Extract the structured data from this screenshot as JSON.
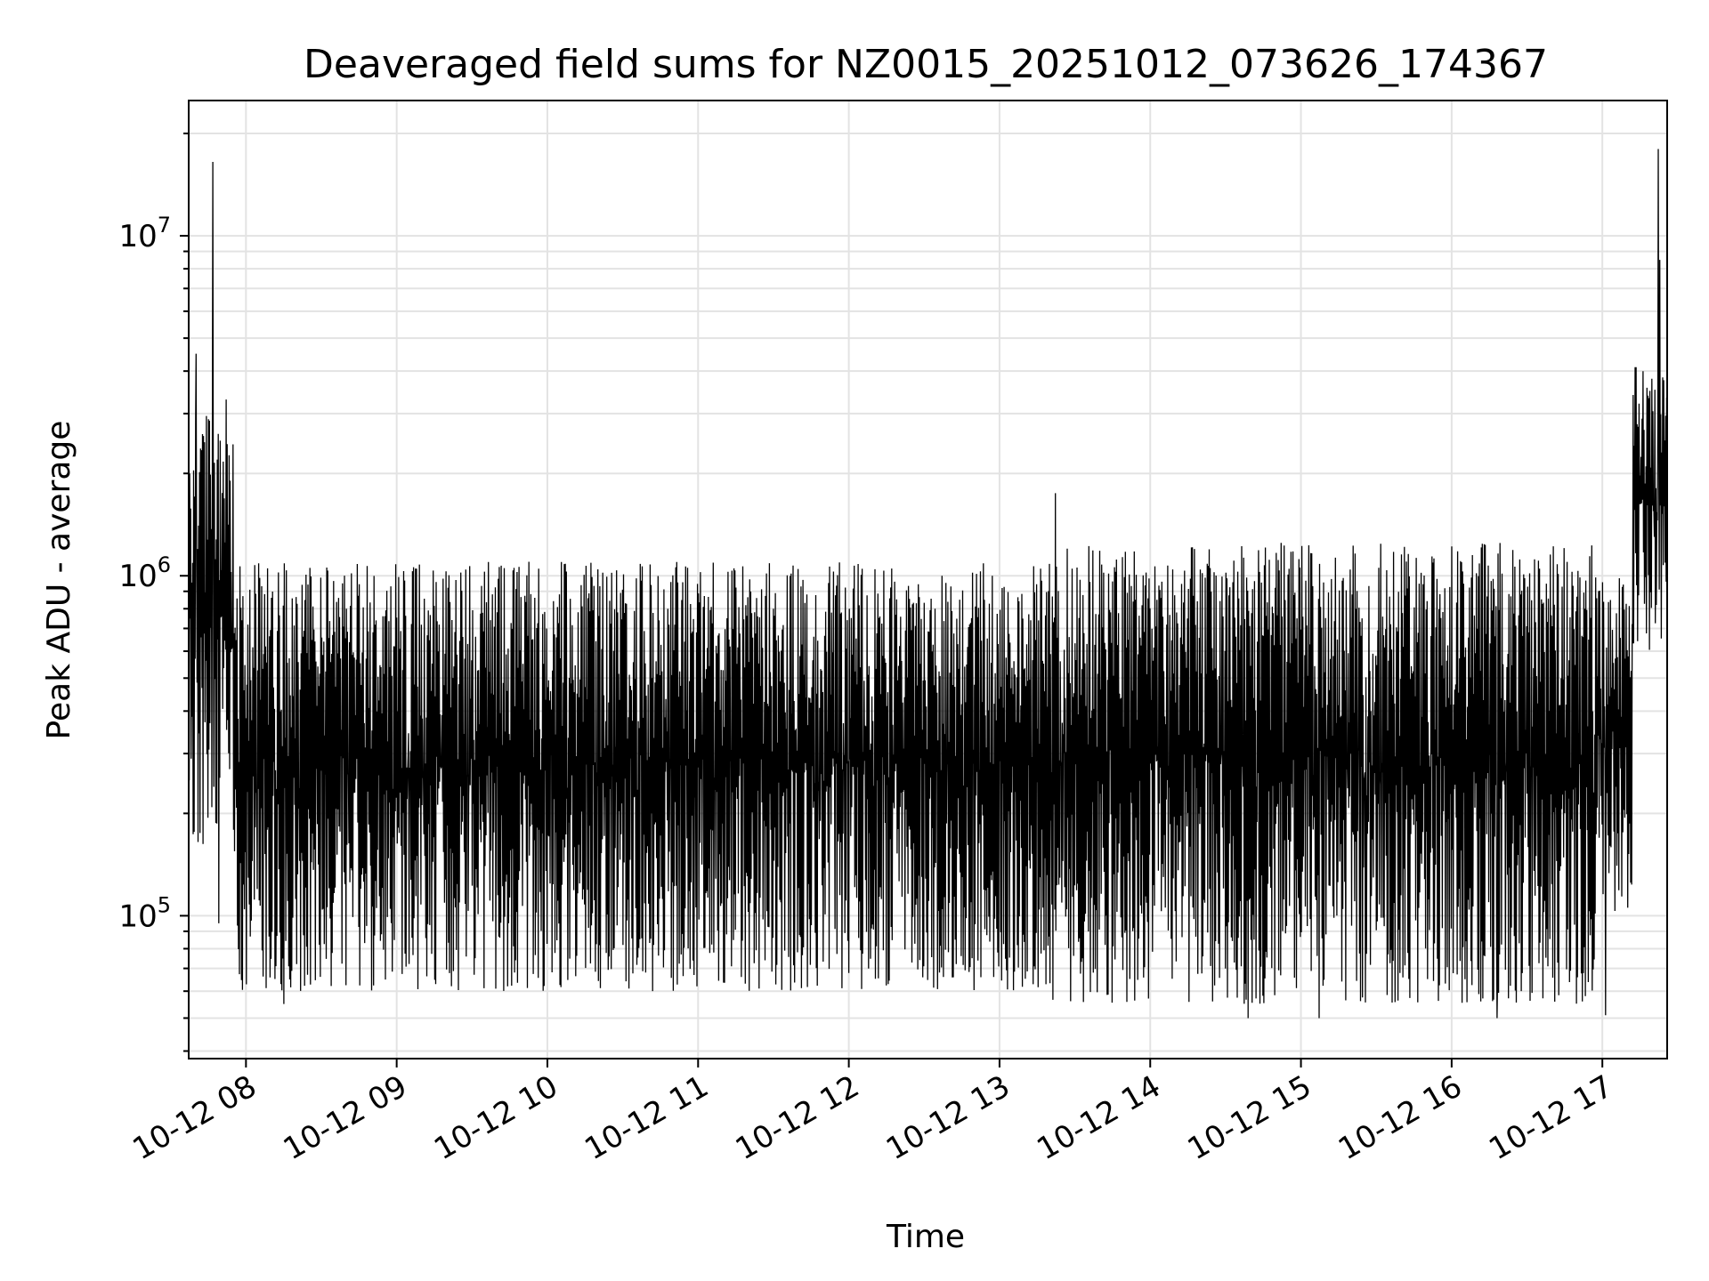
{
  "chart_data": {
    "type": "line",
    "title": "Deaveraged field sums for NZ0015_20251012_073626_174367",
    "xlabel": "Time",
    "ylabel": "Peak ADU - average",
    "yscale": "log",
    "ylim": [
      38000,
      25000000
    ],
    "x_range_hours": [
      7.62,
      17.43
    ],
    "grid": true,
    "x_tick_hours": [
      8,
      9,
      10,
      11,
      12,
      13,
      14,
      15,
      16,
      17
    ],
    "x_tick_labels": [
      "10-12 08",
      "10-12 09",
      "10-12 10",
      "10-12 11",
      "10-12 12",
      "10-12 13",
      "10-12 14",
      "10-12 15",
      "10-12 16",
      "10-12 17"
    ],
    "y_major_ticks": [
      100000,
      1000000,
      10000000
    ],
    "y_tick_labels": [
      {
        "base": "10",
        "exp": "5"
      },
      {
        "base": "10",
        "exp": "6"
      },
      {
        "base": "10",
        "exp": "7"
      }
    ],
    "series": [
      {
        "name": "field sums",
        "color": "#000000",
        "segments": [
          {
            "start_hour": 7.62,
            "end_hour": 7.92,
            "low": 150000,
            "high": 3000000
          },
          {
            "start_hour": 7.92,
            "end_hour": 13.35,
            "low": 60000,
            "high": 1100000
          },
          {
            "start_hour": 13.35,
            "end_hour": 16.95,
            "low": 55000,
            "high": 1250000
          },
          {
            "start_hour": 16.95,
            "end_hour": 17.2,
            "low": 100000,
            "high": 1000000
          },
          {
            "start_hour": 17.2,
            "end_hour": 17.43,
            "low": 600000,
            "high": 4500000
          }
        ],
        "peaks": [
          {
            "hour": 7.78,
            "value": 16500000
          },
          {
            "hour": 7.67,
            "value": 4500000
          },
          {
            "hour": 7.87,
            "value": 3300000
          },
          {
            "hour": 13.37,
            "value": 1750000
          },
          {
            "hour": 17.37,
            "value": 18000000
          },
          {
            "hour": 17.38,
            "value": 8500000
          },
          {
            "hour": 17.33,
            "value": 3800000
          }
        ],
        "dips": [
          {
            "hour": 7.82,
            "value": 95000
          },
          {
            "hour": 8.25,
            "value": 55000
          },
          {
            "hour": 14.65,
            "value": 50000
          },
          {
            "hour": 15.12,
            "value": 50000
          },
          {
            "hour": 16.3,
            "value": 50000
          },
          {
            "hour": 17.02,
            "value": 51000
          }
        ]
      }
    ]
  }
}
